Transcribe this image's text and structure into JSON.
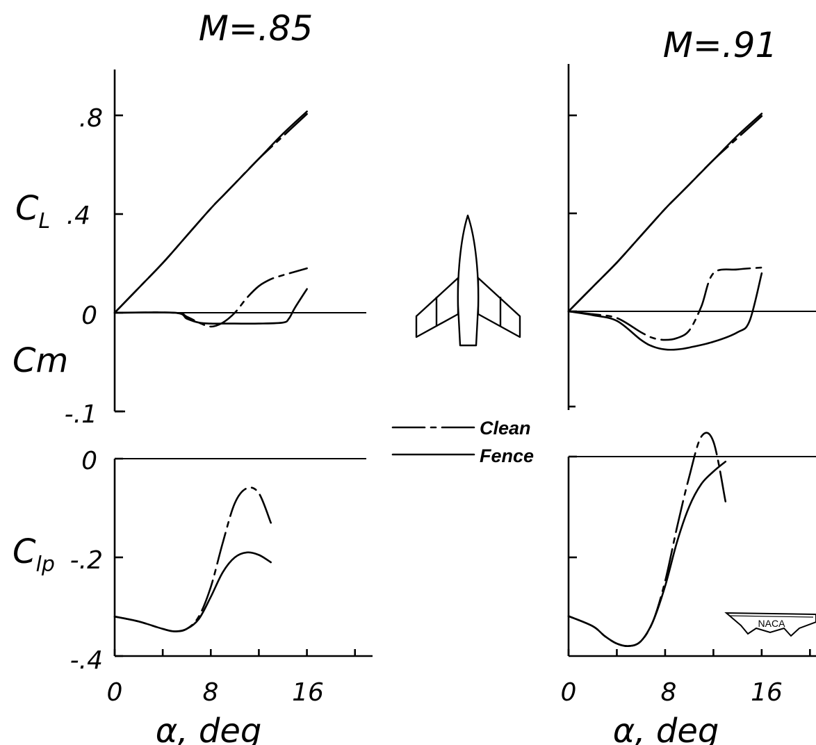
{
  "chart_data": [
    {
      "type": "line",
      "title": "M=.85",
      "xlabel": "α, deg",
      "x_ticks": [
        "0",
        "8",
        "16"
      ],
      "xlim": [
        0,
        21
      ],
      "panels": {
        "upper": {
          "ylabel": "CL",
          "ylabel_main": "C",
          "ylabel_sub": "L",
          "ylabel2": "Cm",
          "y_ticks": [
            ".8",
            ".4",
            "0",
            "-.1"
          ],
          "ylim": [
            -0.2,
            0.96
          ],
          "series": [
            {
              "name": "Clean",
              "quantity": "CL",
              "x": [
                0,
                2,
                4,
                6,
                8,
                9,
                10,
                12,
                14,
                16
              ],
              "y": [
                0,
                0.1,
                0.2,
                0.31,
                0.42,
                0.47,
                0.52,
                0.62,
                0.71,
                0.8
              ]
            },
            {
              "name": "Fence",
              "quantity": "CL",
              "x": [
                0,
                2,
                4,
                6,
                8,
                9,
                10,
                12,
                14,
                16
              ],
              "y": [
                0,
                0.1,
                0.2,
                0.31,
                0.42,
                0.47,
                0.52,
                0.62,
                0.72,
                0.81
              ]
            },
            {
              "name": "Clean",
              "quantity": "Cm",
              "x": [
                0,
                5,
                6,
                7,
                8,
                9,
                10,
                11,
                12,
                13,
                14,
                16
              ],
              "y": [
                0,
                0,
                -0.004,
                -0.01,
                -0.014,
                -0.01,
                0,
                0.015,
                0.027,
                0.034,
                0.038,
                0.045
              ]
            },
            {
              "name": "Fence",
              "quantity": "Cm",
              "x": [
                0,
                5,
                6,
                7,
                8,
                9,
                10,
                12,
                14,
                14.5,
                15,
                16
              ],
              "y": [
                0,
                0,
                -0.006,
                -0.01,
                -0.011,
                -0.011,
                -0.011,
                -0.011,
                -0.01,
                -0.006,
                0.005,
                0.024
              ]
            }
          ]
        },
        "lower": {
          "ylabel": "Clp",
          "ylabel_main": "C",
          "ylabel_sub": "lp",
          "y_ticks": [
            "0",
            "-.2",
            "-.4"
          ],
          "ylim": [
            -0.4,
            0
          ],
          "series": [
            {
              "name": "Clean",
              "x": [
                0,
                2,
                4,
                5,
                6,
                7,
                8,
                9,
                10,
                11,
                12,
                13
              ],
              "y": [
                -0.32,
                -0.33,
                -0.345,
                -0.35,
                -0.345,
                -0.32,
                -0.26,
                -0.17,
                -0.09,
                -0.06,
                -0.07,
                -0.13
              ]
            },
            {
              "name": "Fence",
              "x": [
                0,
                2,
                4,
                5,
                6,
                7,
                8,
                9,
                10,
                11,
                12,
                13
              ],
              "y": [
                -0.32,
                -0.33,
                -0.345,
                -0.35,
                -0.345,
                -0.325,
                -0.28,
                -0.23,
                -0.2,
                -0.19,
                -0.195,
                -0.21
              ]
            }
          ]
        }
      }
    },
    {
      "type": "line",
      "title": "M=.91",
      "xlabel": "α, deg",
      "x_ticks": [
        "0",
        "8",
        "16"
      ],
      "xlim": [
        0,
        20.5
      ],
      "panels": {
        "upper": {
          "ylabel": "",
          "y_ticks": [],
          "ylim": [
            -0.2,
            0.96
          ],
          "series": [
            {
              "name": "Clean",
              "quantity": "CL",
              "x": [
                0,
                2,
                4,
                6,
                8,
                9,
                10,
                12,
                14,
                16
              ],
              "y": [
                0,
                0.1,
                0.2,
                0.31,
                0.42,
                0.47,
                0.52,
                0.62,
                0.71,
                0.8
              ]
            },
            {
              "name": "Fence",
              "quantity": "CL",
              "x": [
                0,
                2,
                4,
                6,
                8,
                9,
                10,
                12,
                14,
                16
              ],
              "y": [
                0,
                0.1,
                0.2,
                0.31,
                0.42,
                0.47,
                0.52,
                0.62,
                0.72,
                0.81
              ]
            },
            {
              "name": "Clean",
              "quantity": "Cm",
              "x": [
                0,
                2,
                4,
                6,
                7,
                8,
                9,
                10,
                11,
                12,
                14,
                16
              ],
              "y": [
                0,
                -0.003,
                -0.007,
                -0.022,
                -0.028,
                -0.03,
                -0.028,
                -0.02,
                0.005,
                0.04,
                0.044,
                0.046
              ]
            },
            {
              "name": "Fence",
              "quantity": "Cm",
              "x": [
                0,
                2,
                4,
                6,
                7,
                8,
                9,
                10,
                12,
                14,
                15,
                16
              ],
              "y": [
                0,
                -0.004,
                -0.01,
                -0.03,
                -0.037,
                -0.04,
                -0.04,
                -0.038,
                -0.032,
                -0.022,
                -0.01,
                0.04
              ]
            }
          ]
        },
        "lower": {
          "ylabel": "",
          "y_ticks": [],
          "ylim": [
            -0.4,
            0
          ],
          "series": [
            {
              "name": "Clean",
              "x": [
                0,
                2,
                3,
                4,
                5,
                6,
                7,
                8,
                9,
                10,
                11,
                12,
                13
              ],
              "y": [
                -0.32,
                -0.34,
                -0.36,
                -0.375,
                -0.38,
                -0.37,
                -0.33,
                -0.25,
                -0.14,
                -0.04,
                0.04,
                0.03,
                -0.09
              ]
            },
            {
              "name": "Fence",
              "x": [
                0,
                2,
                3,
                4,
                5,
                6,
                7,
                8,
                9,
                10,
                11,
                12,
                13
              ],
              "y": [
                -0.32,
                -0.34,
                -0.36,
                -0.375,
                -0.38,
                -0.37,
                -0.33,
                -0.26,
                -0.17,
                -0.1,
                -0.055,
                -0.03,
                -0.01
              ]
            }
          ]
        }
      }
    }
  ],
  "legend": [
    {
      "label": "Clean",
      "style": "dashed"
    },
    {
      "label": "Fence",
      "style": "solid"
    }
  ],
  "logo_text": "NACA",
  "illustration": "swept-wing-aircraft-planform"
}
